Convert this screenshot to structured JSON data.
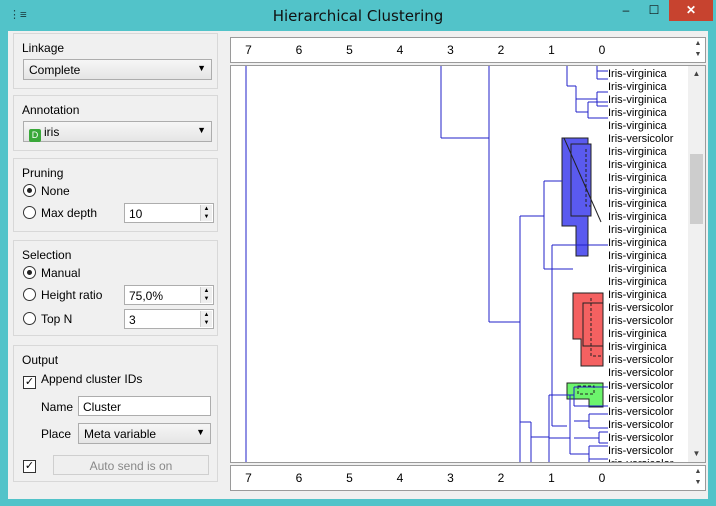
{
  "window": {
    "title": "Hierarchical Clustering",
    "controls": {
      "minimize": "–",
      "maximize": "☐",
      "close": "✕"
    }
  },
  "linkage": {
    "title": "Linkage",
    "value": "Complete"
  },
  "annotation": {
    "title": "Annotation",
    "badge": "D",
    "value": "iris"
  },
  "pruning": {
    "title": "Pruning",
    "none_label": "None",
    "max_depth_label": "Max depth",
    "max_depth_value": "10",
    "selected": "None"
  },
  "selection": {
    "title": "Selection",
    "manual_label": "Manual",
    "height_ratio_label": "Height ratio",
    "height_ratio_value": "75,0%",
    "top_n_label": "Top N",
    "top_n_value": "3",
    "selected": "Manual"
  },
  "output": {
    "title": "Output",
    "append_label": "Append cluster IDs",
    "append_checked": true,
    "name_label": "Name",
    "name_value": "Cluster",
    "place_label": "Place",
    "place_value": "Meta variable",
    "auto_send_checked": true,
    "auto_send_label": "Auto send is on"
  },
  "axis": {
    "ticks": [
      "7",
      "6",
      "5",
      "4",
      "3",
      "2",
      "1",
      "0"
    ]
  },
  "leaves": [
    "Iris-virginica",
    "Iris-virginica",
    "Iris-virginica",
    "Iris-virginica",
    "Iris-virginica",
    "Iris-versicolor",
    "Iris-virginica",
    "Iris-virginica",
    "Iris-virginica",
    "Iris-virginica",
    "Iris-virginica",
    "Iris-virginica",
    "Iris-virginica",
    "Iris-virginica",
    "Iris-virginica",
    "Iris-virginica",
    "Iris-virginica",
    "Iris-virginica",
    "Iris-versicolor",
    "Iris-versicolor",
    "Iris-virginica",
    "Iris-virginica",
    "Iris-versicolor",
    "Iris-versicolor",
    "Iris-versicolor",
    "Iris-versicolor",
    "Iris-versicolor",
    "Iris-versicolor",
    "Iris-versicolor",
    "Iris-versicolor",
    "Iris-versicolor"
  ],
  "colors": {
    "cluster1": "#5a5aef",
    "cluster2": "#f46161",
    "cluster3": "#6cf46c",
    "line": "#2020c8"
  }
}
